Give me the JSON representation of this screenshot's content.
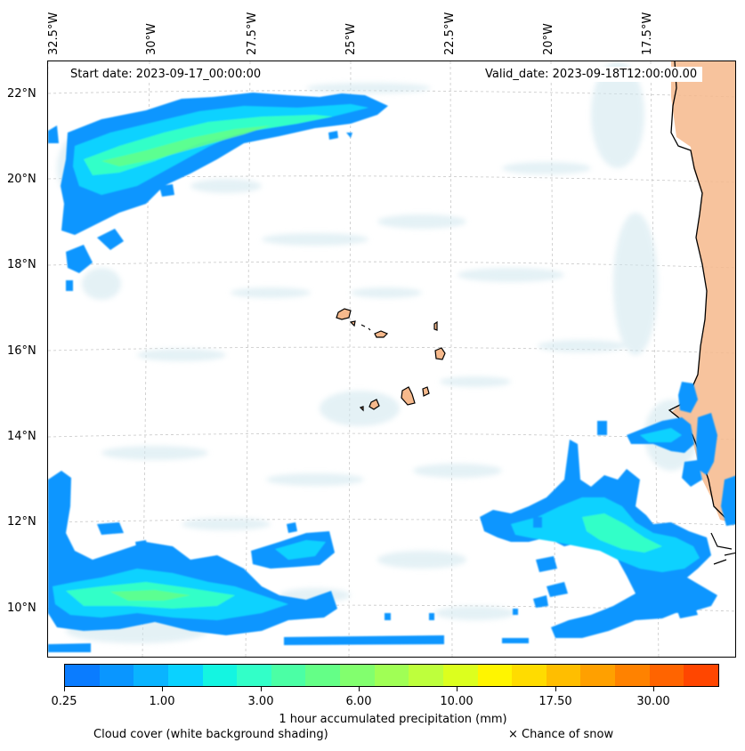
{
  "map": {
    "start_date_label": "Start date: 2023-09-17_00:00:00",
    "valid_date_label": "Valid_date: 2023-09-18T12:00:00.00",
    "lon_labels": [
      "32.5°W",
      "30°W",
      "27.5°W",
      "25°W",
      "22.5°W",
      "20°W",
      "17.5°W"
    ],
    "lat_labels": [
      "22°N",
      "20°N",
      "18°N",
      "16°N",
      "14°N",
      "12°N",
      "10°N"
    ],
    "layers": {
      "land_color": "#f6b98c",
      "cloud_color": "#cfe6ee",
      "precip_colors": [
        "#0a7cff",
        "#0aa0ff",
        "#0ac8ff",
        "#19f0e6",
        "#5affa0"
      ]
    }
  },
  "colorbar": {
    "colors": [
      "#0a7cff",
      "#0a96ff",
      "#0ab4ff",
      "#0ad2ff",
      "#14f5e1",
      "#32ffc8",
      "#4bffa5",
      "#64ff87",
      "#82ff6e",
      "#a0ff55",
      "#beff3c",
      "#dcff1e",
      "#fff500",
      "#ffdc00",
      "#ffbe00",
      "#ffa000",
      "#ff8200",
      "#ff6400",
      "#ff4600"
    ],
    "tick_labels": [
      "0.25",
      "1.00",
      "3.00",
      "6.00",
      "10.00",
      "17.50",
      "30.00"
    ],
    "title": "1 hour accumulated precipitation (mm)"
  },
  "legend": {
    "cloud_note": "Cloud cover (white background shading)",
    "snow_note": "× Chance of snow"
  }
}
